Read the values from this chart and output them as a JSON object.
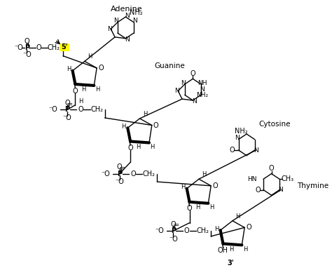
{
  "background_color": "#ffffff",
  "line_color": "#000000",
  "highlight_color": "#ffff00",
  "adenine_label": "Adenine",
  "guanine_label": "Guanine",
  "cytosine_label": "Cytosine",
  "thymine_label": "Thymine",
  "five_prime": "5'",
  "three_prime": "3'"
}
